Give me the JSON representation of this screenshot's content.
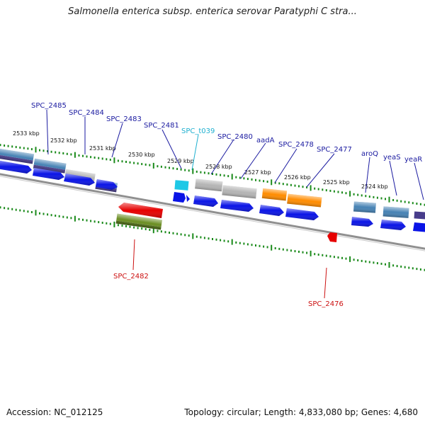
{
  "title": "Salmonella enterica subsp. enterica serovar Paratyphi C stra...",
  "footer": {
    "accession": "Accession: NC_012125",
    "summary": "Topology: circular; Length: 4,833,080 bp; Genes: 4,680"
  },
  "ticks": [
    "2533 kbp",
    "2532 kbp",
    "2531 kbp",
    "2530 kbp",
    "2529 kbp",
    "2528 kbp",
    "2527 kbp",
    "2526 kbp",
    "2525 kbp",
    "2524 kbp"
  ],
  "genes_top": [
    "SPC_2485",
    "SPC_2484",
    "SPC_2483",
    "SPC_2481",
    "SPC_t039",
    "SPC_2480",
    "aadA",
    "SPC_2478",
    "SPC_2477",
    "aroQ",
    "yeaS",
    "yeaR"
  ],
  "genes_bottom": [
    "SPC_2482",
    "SPC_2476"
  ],
  "colors": {
    "forward_cds": "#0a14e6",
    "reverse_cds": "#e60000",
    "trna": "#1ec8e6",
    "backbone": "#808080",
    "tick": "#1a8a1a",
    "cog_gray": "#b4b4b4",
    "cog_orange": "#ff8c00",
    "cog_steel": "#4682b4",
    "cog_slate": "#483d8b",
    "cog_olive": "#6b8e23",
    "label_forward": "#1a1aa0",
    "label_trna": "#20b0d0",
    "label_reverse": "#cc1010"
  }
}
